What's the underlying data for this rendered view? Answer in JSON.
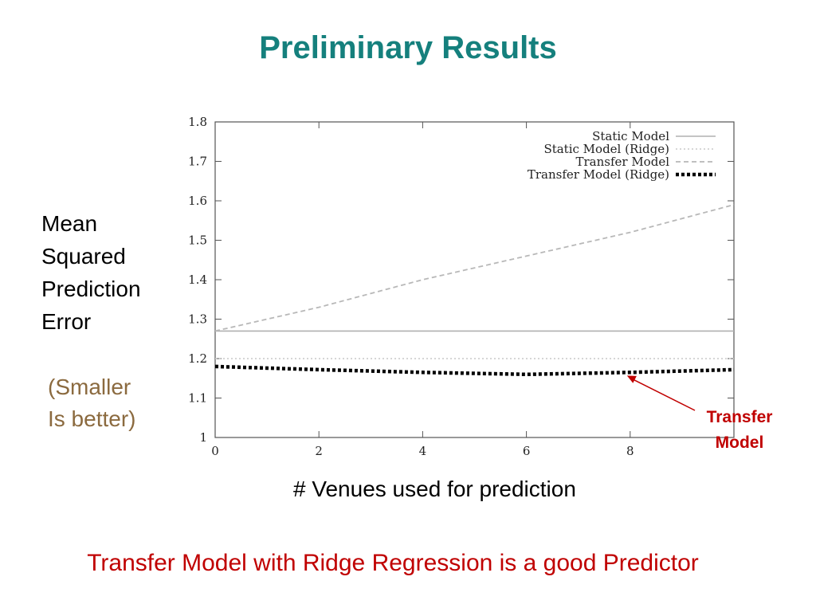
{
  "slide": {
    "title": "Preliminary Results",
    "ylabel_lines": [
      "Mean",
      "Squared",
      "Prediction",
      "Error"
    ],
    "note_lines": [
      "(Smaller",
      "Is better)"
    ],
    "xlabel": "# Venues used for prediction",
    "callout_lines": [
      "Transfer",
      "Model"
    ],
    "conclusion": "Transfer Model with Ridge Regression is a good Predictor"
  },
  "colors": {
    "title": "#15807d",
    "note": "#8b6a3f",
    "highlight": "#c00000"
  },
  "chart_data": {
    "type": "line",
    "title": "",
    "xlabel": "",
    "ylabel": "",
    "xlim": [
      0,
      10
    ],
    "ylim": [
      1,
      1.8
    ],
    "x_ticks": [
      0,
      2,
      4,
      6,
      8
    ],
    "y_ticks": [
      1,
      1.1,
      1.2,
      1.3,
      1.4,
      1.5,
      1.6,
      1.7,
      1.8
    ],
    "legend_position": "top-right",
    "grid": false,
    "series": [
      {
        "name": "Static Model",
        "style": "solid",
        "color": "#b0b0b0",
        "x": [
          0,
          10
        ],
        "y": [
          1.27,
          1.27
        ]
      },
      {
        "name": "Static Model (Ridge)",
        "style": "dotted",
        "color": "#c8c8c8",
        "x": [
          0,
          10
        ],
        "y": [
          1.2,
          1.2
        ]
      },
      {
        "name": "Transfer Model",
        "style": "dashed",
        "color": "#b8b8b8",
        "x": [
          0,
          2,
          4,
          6,
          8,
          10
        ],
        "y": [
          1.27,
          1.33,
          1.4,
          1.46,
          1.52,
          1.59
        ]
      },
      {
        "name": "Transfer Model (Ridge)",
        "style": "heavy-dotted",
        "color": "#000000",
        "x": [
          0,
          2,
          4,
          6,
          8,
          10
        ],
        "y": [
          1.18,
          1.172,
          1.165,
          1.16,
          1.165,
          1.172
        ]
      }
    ]
  }
}
